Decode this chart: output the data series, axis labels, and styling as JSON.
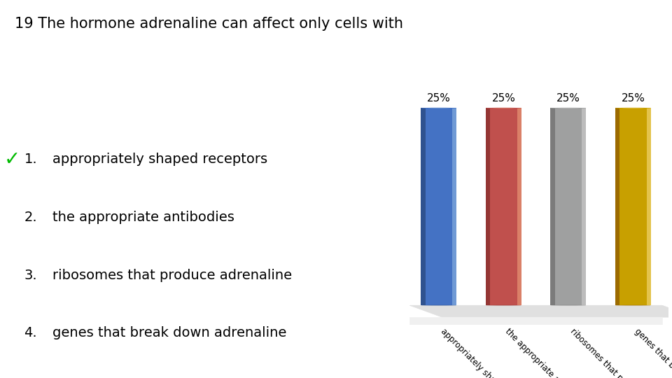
{
  "title": "19 The hormone adrenaline can affect only cells with",
  "categories": [
    "appropriately shaped...",
    "the appropriate antib...",
    "ribosomes that produ...",
    "genes that break dow..."
  ],
  "values": [
    25,
    25,
    25,
    25
  ],
  "bar_colors": [
    "#4472C4",
    "#C0504D",
    "#9FA0A0",
    "#C8A000"
  ],
  "bar_colors_dark": [
    "#2F528F",
    "#943634",
    "#7B7B7B",
    "#9C6B00"
  ],
  "bar_colors_light": [
    "#9DC3E6",
    "#F4B183",
    "#D9D9D9",
    "#FFE699"
  ],
  "bar_labels": [
    "25%",
    "25%",
    "25%",
    "25%"
  ],
  "list_items": [
    "appropriately shaped receptors",
    "the appropriate antibodies",
    "ribosomes that produce adrenaline",
    "genes that break down adrenaline"
  ],
  "checkmark": "✓",
  "background_color": "#FFFFFF",
  "text_color": "#000000",
  "title_fontsize": 15,
  "list_fontsize": 14,
  "bar_label_fontsize": 11,
  "tick_fontsize": 8.5
}
